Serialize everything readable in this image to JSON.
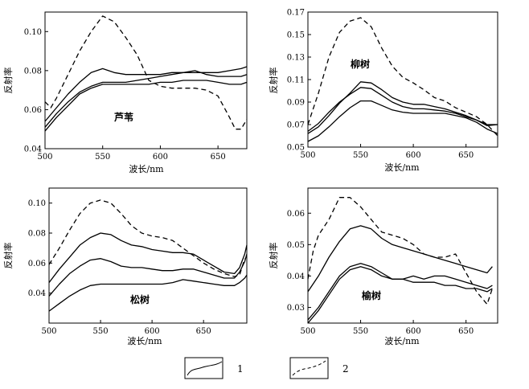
{
  "legend": {
    "items": [
      {
        "label": "1",
        "style": "solid"
      },
      {
        "label": "2",
        "style": "dashed"
      }
    ]
  },
  "chart_data": [
    {
      "type": "line",
      "title": "芦苇",
      "xlabel": "波长/nm",
      "ylabel": "反射率",
      "xlim": [
        500,
        675
      ],
      "ylim": [
        0.04,
        0.11
      ],
      "xticks": [
        500,
        550,
        600,
        650
      ],
      "yticks": [
        0.04,
        0.06,
        0.08,
        0.1
      ],
      "ytick_labels": [
        "0.04",
        "0.06",
        "0.08",
        "0.10"
      ],
      "grid": false,
      "series": [
        {
          "style": "solid",
          "x": [
            500,
            510,
            520,
            530,
            540,
            550,
            560,
            570,
            580,
            590,
            600,
            610,
            620,
            630,
            640,
            650,
            660,
            670,
            675
          ],
          "y": [
            0.054,
            0.061,
            0.068,
            0.074,
            0.079,
            0.081,
            0.079,
            0.078,
            0.078,
            0.078,
            0.078,
            0.079,
            0.079,
            0.079,
            0.079,
            0.079,
            0.08,
            0.081,
            0.082
          ]
        },
        {
          "style": "solid",
          "x": [
            500,
            510,
            520,
            530,
            540,
            550,
            560,
            570,
            580,
            590,
            600,
            610,
            620,
            630,
            640,
            650,
            660,
            670,
            675
          ],
          "y": [
            0.051,
            0.058,
            0.064,
            0.069,
            0.072,
            0.074,
            0.074,
            0.074,
            0.075,
            0.076,
            0.077,
            0.078,
            0.079,
            0.08,
            0.078,
            0.077,
            0.077,
            0.077,
            0.078
          ]
        },
        {
          "style": "solid",
          "x": [
            500,
            510,
            520,
            530,
            540,
            550,
            560,
            570,
            580,
            590,
            600,
            610,
            620,
            630,
            640,
            650,
            660,
            670,
            675
          ],
          "y": [
            0.049,
            0.056,
            0.062,
            0.068,
            0.071,
            0.073,
            0.073,
            0.073,
            0.073,
            0.073,
            0.074,
            0.074,
            0.075,
            0.075,
            0.075,
            0.074,
            0.073,
            0.073,
            0.074
          ]
        },
        {
          "style": "dashed",
          "x": [
            500,
            505,
            510,
            520,
            530,
            540,
            550,
            560,
            570,
            580,
            590,
            600,
            610,
            620,
            630,
            640,
            650,
            660,
            665,
            670,
            675
          ],
          "y": [
            0.064,
            0.061,
            0.066,
            0.078,
            0.09,
            0.1,
            0.108,
            0.105,
            0.097,
            0.088,
            0.075,
            0.072,
            0.071,
            0.071,
            0.071,
            0.07,
            0.067,
            0.056,
            0.05,
            0.05,
            0.055
          ]
        }
      ]
    },
    {
      "type": "line",
      "title": "柳树",
      "xlabel": "波长/nm",
      "ylabel": "反射率",
      "xlim": [
        500,
        680
      ],
      "ylim": [
        0.05,
        0.17
      ],
      "xticks": [
        500,
        550,
        600,
        650
      ],
      "yticks": [
        0.05,
        0.07,
        0.09,
        0.11,
        0.13,
        0.15,
        0.17
      ],
      "ytick_labels": [
        "0.05",
        "0.07",
        "0.09",
        "0.11",
        "0.13",
        "0.15",
        "0.17"
      ],
      "grid": false,
      "series": [
        {
          "style": "solid",
          "x": [
            500,
            510,
            520,
            530,
            540,
            550,
            560,
            570,
            580,
            590,
            600,
            610,
            620,
            630,
            640,
            650,
            660,
            670,
            680
          ],
          "y": [
            0.062,
            0.068,
            0.078,
            0.089,
            0.098,
            0.108,
            0.107,
            0.101,
            0.094,
            0.09,
            0.088,
            0.088,
            0.086,
            0.084,
            0.081,
            0.078,
            0.074,
            0.069,
            0.07
          ]
        },
        {
          "style": "solid",
          "x": [
            500,
            510,
            520,
            530,
            540,
            550,
            560,
            570,
            580,
            590,
            600,
            610,
            620,
            630,
            640,
            650,
            660,
            670,
            680
          ],
          "y": [
            0.064,
            0.071,
            0.081,
            0.09,
            0.097,
            0.103,
            0.102,
            0.096,
            0.09,
            0.086,
            0.084,
            0.084,
            0.083,
            0.082,
            0.08,
            0.077,
            0.074,
            0.07,
            0.07
          ]
        },
        {
          "style": "solid",
          "x": [
            500,
            510,
            520,
            530,
            540,
            550,
            560,
            570,
            580,
            590,
            600,
            610,
            620,
            630,
            640,
            650,
            660,
            670,
            680
          ],
          "y": [
            0.055,
            0.06,
            0.068,
            0.077,
            0.085,
            0.091,
            0.091,
            0.087,
            0.083,
            0.081,
            0.08,
            0.08,
            0.08,
            0.08,
            0.078,
            0.076,
            0.072,
            0.066,
            0.062
          ]
        },
        {
          "style": "dashed",
          "x": [
            500,
            510,
            520,
            530,
            540,
            550,
            560,
            570,
            580,
            590,
            600,
            610,
            620,
            630,
            640,
            650,
            660,
            670,
            680
          ],
          "y": [
            0.07,
            0.098,
            0.13,
            0.152,
            0.162,
            0.165,
            0.157,
            0.138,
            0.122,
            0.112,
            0.107,
            0.101,
            0.094,
            0.091,
            0.085,
            0.081,
            0.077,
            0.07,
            0.06
          ]
        }
      ]
    },
    {
      "type": "line",
      "title": "松树",
      "xlabel": "波长/nm",
      "ylabel": "反射率",
      "xlim": [
        500,
        692
      ],
      "ylim": [
        0.02,
        0.11
      ],
      "xticks": [
        500,
        550,
        600,
        650
      ],
      "yticks": [
        0.04,
        0.06,
        0.08,
        0.1
      ],
      "ytick_labels": [
        "0.04",
        "0.06",
        "0.08",
        "0.10"
      ],
      "grid": false,
      "series": [
        {
          "style": "solid",
          "x": [
            500,
            510,
            520,
            530,
            540,
            550,
            560,
            570,
            580,
            590,
            600,
            610,
            620,
            630,
            640,
            650,
            660,
            670,
            680,
            685,
            690,
            692
          ],
          "y": [
            0.047,
            0.056,
            0.064,
            0.072,
            0.077,
            0.08,
            0.079,
            0.075,
            0.072,
            0.071,
            0.069,
            0.068,
            0.067,
            0.067,
            0.066,
            0.062,
            0.058,
            0.054,
            0.053,
            0.057,
            0.066,
            0.072
          ]
        },
        {
          "style": "solid",
          "x": [
            500,
            510,
            520,
            530,
            540,
            550,
            560,
            570,
            580,
            590,
            600,
            610,
            620,
            630,
            640,
            650,
            660,
            670,
            680,
            685,
            690,
            692
          ],
          "y": [
            0.038,
            0.046,
            0.053,
            0.058,
            0.062,
            0.063,
            0.061,
            0.058,
            0.057,
            0.057,
            0.056,
            0.055,
            0.055,
            0.056,
            0.056,
            0.054,
            0.052,
            0.05,
            0.05,
            0.054,
            0.061,
            0.066
          ]
        },
        {
          "style": "solid",
          "x": [
            500,
            510,
            520,
            530,
            540,
            550,
            560,
            570,
            580,
            590,
            600,
            610,
            620,
            630,
            640,
            650,
            660,
            670,
            680,
            685,
            690,
            692
          ],
          "y": [
            0.028,
            0.033,
            0.038,
            0.042,
            0.045,
            0.046,
            0.046,
            0.046,
            0.046,
            0.046,
            0.046,
            0.046,
            0.047,
            0.049,
            0.048,
            0.047,
            0.046,
            0.045,
            0.045,
            0.047,
            0.05,
            0.052
          ]
        },
        {
          "style": "dashed",
          "x": [
            500,
            510,
            520,
            530,
            540,
            550,
            560,
            570,
            580,
            590,
            600,
            610,
            620,
            630,
            640,
            650,
            660,
            670,
            680,
            685,
            690
          ],
          "y": [
            0.059,
            0.07,
            0.082,
            0.093,
            0.1,
            0.102,
            0.1,
            0.093,
            0.085,
            0.08,
            0.078,
            0.077,
            0.075,
            0.07,
            0.065,
            0.06,
            0.056,
            0.053,
            0.051,
            0.052,
            0.063
          ]
        }
      ]
    },
    {
      "type": "line",
      "title": "榆树",
      "xlabel": "波长/nm",
      "ylabel": "反射率",
      "xlim": [
        500,
        680
      ],
      "ylim": [
        0.025,
        0.068
      ],
      "xticks": [
        500,
        550,
        600,
        650
      ],
      "yticks": [
        0.03,
        0.04,
        0.05,
        0.06
      ],
      "ytick_labels": [
        "0.03",
        "0.04",
        "0.05",
        "0.06"
      ],
      "grid": false,
      "series": [
        {
          "style": "solid",
          "x": [
            500,
            510,
            520,
            530,
            540,
            550,
            560,
            570,
            580,
            590,
            600,
            610,
            620,
            630,
            640,
            650,
            660,
            670,
            675
          ],
          "y": [
            0.035,
            0.04,
            0.046,
            0.051,
            0.055,
            0.056,
            0.055,
            0.052,
            0.05,
            0.049,
            0.048,
            0.047,
            0.046,
            0.045,
            0.044,
            0.043,
            0.042,
            0.041,
            0.043
          ]
        },
        {
          "style": "solid",
          "x": [
            500,
            510,
            520,
            530,
            540,
            550,
            560,
            570,
            580,
            590,
            600,
            610,
            620,
            630,
            640,
            650,
            660,
            670,
            675
          ],
          "y": [
            0.026,
            0.03,
            0.035,
            0.04,
            0.043,
            0.044,
            0.043,
            0.041,
            0.039,
            0.039,
            0.04,
            0.039,
            0.04,
            0.04,
            0.039,
            0.038,
            0.037,
            0.036,
            0.037
          ]
        },
        {
          "style": "solid",
          "x": [
            500,
            510,
            520,
            530,
            540,
            550,
            560,
            570,
            580,
            590,
            600,
            610,
            620,
            630,
            640,
            650,
            660,
            670,
            675
          ],
          "y": [
            0.025,
            0.029,
            0.034,
            0.039,
            0.042,
            0.043,
            0.042,
            0.04,
            0.039,
            0.039,
            0.038,
            0.038,
            0.038,
            0.037,
            0.037,
            0.036,
            0.036,
            0.035,
            0.036
          ]
        },
        {
          "style": "dashed",
          "x": [
            500,
            505,
            510,
            520,
            530,
            540,
            550,
            560,
            570,
            580,
            590,
            600,
            610,
            620,
            630,
            640,
            650,
            660,
            670,
            675
          ],
          "y": [
            0.039,
            0.048,
            0.053,
            0.058,
            0.065,
            0.065,
            0.062,
            0.058,
            0.054,
            0.053,
            0.052,
            0.05,
            0.047,
            0.046,
            0.046,
            0.047,
            0.041,
            0.035,
            0.031,
            0.036
          ]
        }
      ]
    }
  ]
}
